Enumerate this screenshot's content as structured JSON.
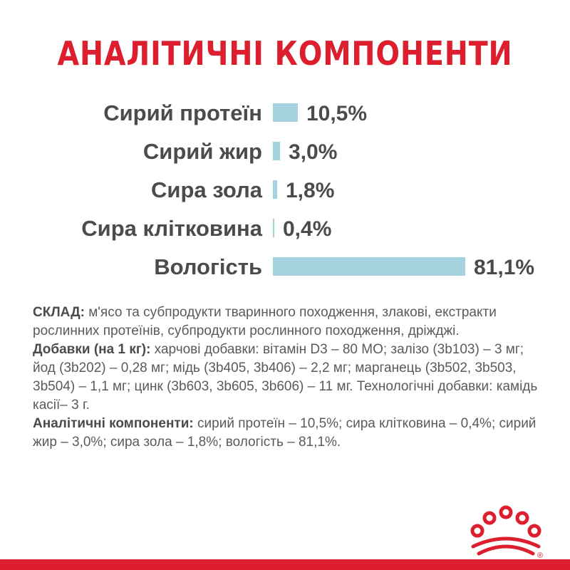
{
  "title": "АНАЛІТИЧНІ КОМПОНЕНТИ",
  "chart_data": {
    "type": "bar",
    "orientation": "horizontal",
    "categories": [
      "Сирий протеїн",
      "Сирий жир",
      "Сира зола",
      "Сира клітковина",
      "Вологість"
    ],
    "values": [
      10.5,
      3.0,
      1.8,
      0.4,
      81.1
    ],
    "value_labels": [
      "10,5%",
      "3,0%",
      "1,8%",
      "0,4%",
      "81,1%"
    ],
    "bar_color": "#a4d3df",
    "title": "",
    "xlabel": "",
    "ylabel": "",
    "grid": false,
    "legend": false
  },
  "composition": {
    "sklad_label": "СКЛАД:",
    "sklad_text": " м'ясо та субпродукти тваринного походження, злакові, екстракти рослинних протеїнів, субпродукти рослинного походження, дріжджі.",
    "additives_label": "Добавки (на 1 кг):",
    "additives_text": " харчові добавки: вітамін D3 – 80 МО; залізо (3b103) – 3 мг; йод (3b202) – 0,28 мг; мідь (3b405, 3b406) – 2,2 мг; марганець (3b502, 3b503, 3b504) – 1,1 мг; цинк (3b603, 3b605, 3b606) – 11 мг. Технологічні добавки: камідь касії– 3 г.",
    "analytical_label": "Аналітичні компоненти:",
    "analytical_text": " сирий протеїн – 10,5%; сира клітковина – 0,4%; сирий жир – 3,0%; сира зола – 1,8%; вологість – 81,1%."
  },
  "colors": {
    "brand_red": "#dc1e2e",
    "text_gray": "#4b4b4b"
  },
  "logo": {
    "icon": "crown-icon",
    "mark": "®"
  }
}
